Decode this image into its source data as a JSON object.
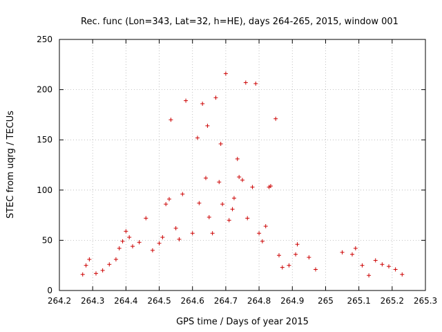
{
  "chart_data": {
    "type": "scatter",
    "title": "Rec. func (Lon=343, Lat=32, h=HE), days 264-265, 2015, window 001",
    "xlabel": "GPS time / Days of year 2015",
    "ylabel": "STEC from uqrg / TECUs",
    "xlim": [
      264.2,
      265.3
    ],
    "ylim": [
      0,
      250
    ],
    "xticks": [
      264.2,
      264.3,
      264.4,
      264.5,
      264.6,
      264.7,
      264.8,
      264.9,
      265,
      265.1,
      265.2,
      265.3
    ],
    "xtick_labels": [
      "264.2",
      "264.3",
      "264.4",
      "264.5",
      "264.6",
      "264.7",
      "264.8",
      "264.9",
      "265",
      "265.1",
      "265.2",
      "265.3"
    ],
    "yticks": [
      0,
      50,
      100,
      150,
      200,
      250
    ],
    "ytick_labels": [
      "0",
      "50",
      "100",
      "150",
      "200",
      "250"
    ],
    "grid": true,
    "marker": "+",
    "series": [
      {
        "name": "STEC",
        "color": "#cc0000",
        "points": [
          [
            264.27,
            16
          ],
          [
            264.28,
            25
          ],
          [
            264.29,
            31
          ],
          [
            264.31,
            17
          ],
          [
            264.33,
            20
          ],
          [
            264.35,
            26
          ],
          [
            264.37,
            31
          ],
          [
            264.38,
            42
          ],
          [
            264.39,
            49
          ],
          [
            264.4,
            59
          ],
          [
            264.41,
            53
          ],
          [
            264.42,
            44
          ],
          [
            264.44,
            48
          ],
          [
            264.46,
            72
          ],
          [
            264.48,
            40
          ],
          [
            264.5,
            47
          ],
          [
            264.51,
            53
          ],
          [
            264.52,
            86
          ],
          [
            264.53,
            91
          ],
          [
            264.535,
            170
          ],
          [
            264.55,
            62
          ],
          [
            264.56,
            51
          ],
          [
            264.57,
            96
          ],
          [
            264.58,
            189
          ],
          [
            264.6,
            57
          ],
          [
            264.615,
            152
          ],
          [
            264.62,
            87
          ],
          [
            264.63,
            186
          ],
          [
            264.64,
            112
          ],
          [
            264.645,
            164
          ],
          [
            264.65,
            73
          ],
          [
            264.66,
            57
          ],
          [
            264.67,
            192
          ],
          [
            264.68,
            108
          ],
          [
            264.685,
            146
          ],
          [
            264.69,
            86
          ],
          [
            264.7,
            216
          ],
          [
            264.71,
            70
          ],
          [
            264.72,
            81
          ],
          [
            264.725,
            92
          ],
          [
            264.735,
            131
          ],
          [
            264.74,
            113
          ],
          [
            264.75,
            110
          ],
          [
            264.76,
            207
          ],
          [
            264.765,
            72
          ],
          [
            264.78,
            103
          ],
          [
            264.79,
            206
          ],
          [
            264.8,
            57
          ],
          [
            264.81,
            49
          ],
          [
            264.82,
            64
          ],
          [
            264.83,
            103
          ],
          [
            264.835,
            104
          ],
          [
            264.85,
            171
          ],
          [
            264.86,
            35
          ],
          [
            264.87,
            23
          ],
          [
            264.89,
            25
          ],
          [
            264.91,
            36
          ],
          [
            264.915,
            46
          ],
          [
            264.95,
            33
          ],
          [
            264.97,
            21
          ],
          [
            265.05,
            38
          ],
          [
            265.08,
            36
          ],
          [
            265.09,
            42
          ],
          [
            265.11,
            25
          ],
          [
            265.13,
            15
          ],
          [
            265.15,
            30
          ],
          [
            265.17,
            26
          ],
          [
            265.19,
            24
          ],
          [
            265.21,
            21
          ],
          [
            265.23,
            16
          ]
        ]
      }
    ]
  }
}
